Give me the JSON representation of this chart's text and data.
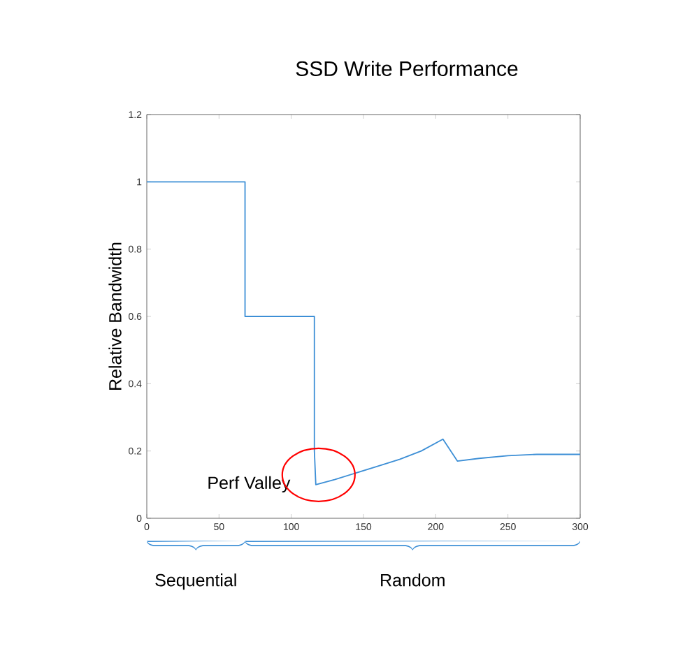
{
  "chart_data": {
    "type": "line",
    "title": "SSD Write Performance",
    "ylabel": "Relative Bandwidth",
    "xlim": [
      0,
      300
    ],
    "ylim": [
      0,
      1.2
    ],
    "xticks": [
      0,
      50,
      100,
      150,
      200,
      250,
      300
    ],
    "yticks": [
      0,
      0.2,
      0.4,
      0.6,
      0.8,
      1,
      1.2
    ],
    "marker": "none",
    "line_style": "solid",
    "series": [
      {
        "color": "#3d8fd6",
        "x": [
          0,
          68,
          68,
          116,
          116,
          117,
          130,
          145,
          160,
          175,
          190,
          205,
          215,
          230,
          250,
          270,
          290,
          300
        ],
        "values": [
          1,
          1,
          0.6,
          0.6,
          0.2,
          0.1,
          0.115,
          0.135,
          0.155,
          0.175,
          0.2,
          0.235,
          0.17,
          0.178,
          0.186,
          0.19,
          0.19,
          0.19
        ]
      }
    ],
    "annotations": [
      {
        "text": "Perf Valley",
        "x": 117,
        "y": 0.1
      },
      "Sequential",
      "Random"
    ]
  }
}
